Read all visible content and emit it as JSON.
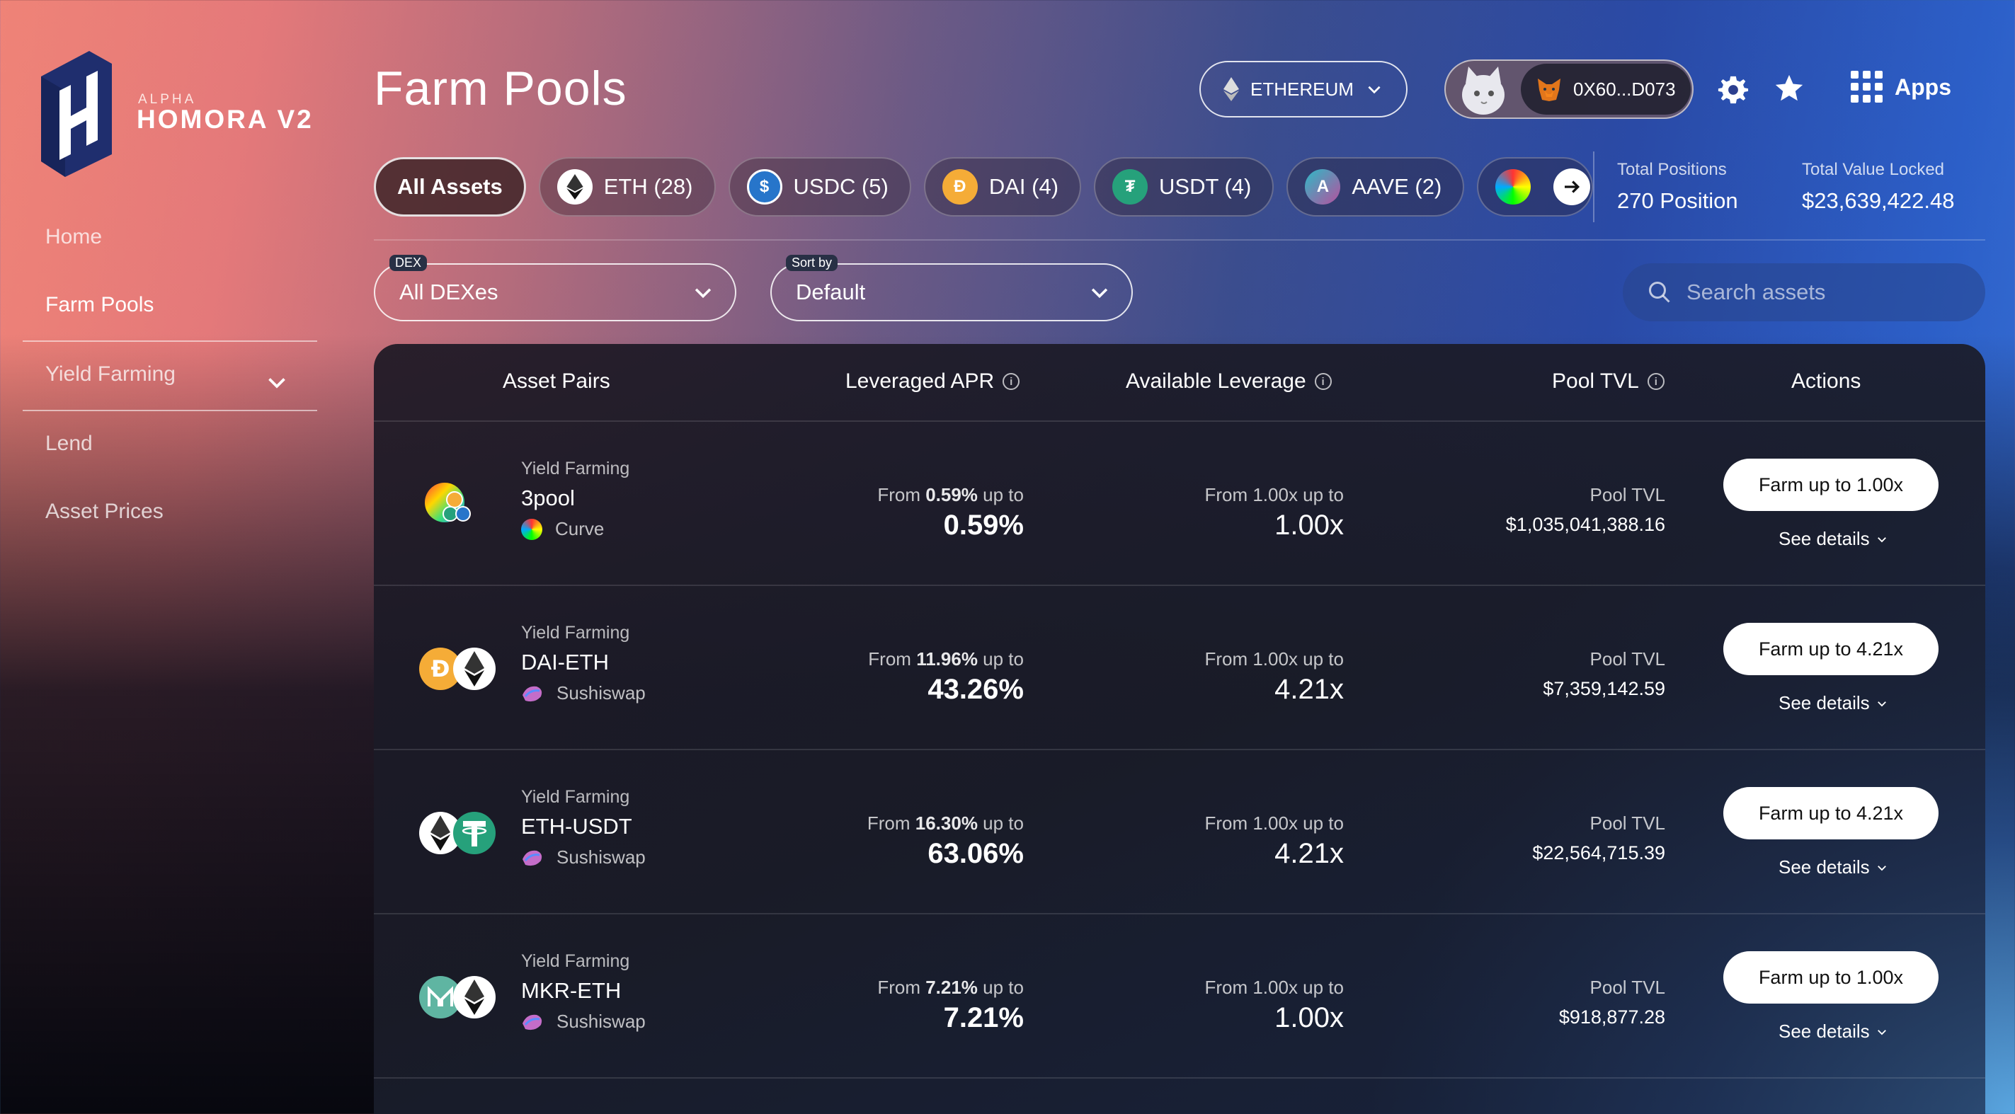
{
  "brand": {
    "small": "ALPHA",
    "big": "HOMORA V2"
  },
  "nav": {
    "home": "Home",
    "farm_pools": "Farm Pools",
    "yield_farming": "Yield Farming",
    "lend": "Lend",
    "asset_prices": "Asset Prices"
  },
  "header": {
    "title": "Farm Pools",
    "chain": "ETHEREUM",
    "wallet_address": "0X60...D073",
    "apps": "Apps"
  },
  "filters": [
    {
      "label": "All Assets",
      "icon": "none"
    },
    {
      "label": "ETH (28)",
      "icon": "eth-icon"
    },
    {
      "label": "USDC (5)",
      "icon": "usdc-icon"
    },
    {
      "label": "DAI (4)",
      "icon": "dai-icon"
    },
    {
      "label": "USDT (4)",
      "icon": "usdt-icon"
    },
    {
      "label": "AAVE (2)",
      "icon": "aave-icon"
    }
  ],
  "stats": {
    "positions_label": "Total Positions",
    "positions_value": "270 Position",
    "tvl_label": "Total Value Locked",
    "tvl_value": "$23,639,422.48"
  },
  "controls": {
    "dex_tag": "DEX",
    "dex_value": "All DEXes",
    "sort_tag": "Sort by",
    "sort_value": "Default",
    "search_placeholder": "Search assets"
  },
  "table": {
    "headers": {
      "pairs": "Asset Pairs",
      "apr": "Leveraged APR",
      "leverage": "Available Leverage",
      "tvl": "Pool TVL",
      "actions": "Actions"
    },
    "rows": [
      {
        "type": "Yield Farming",
        "pair": "3pool",
        "dex": "Curve",
        "apr_from_prefix": "From ",
        "apr_from_value": "0.59%",
        "apr_from_suffix": " up to",
        "apr_max": "0.59%",
        "lev_from": "From 1.00x up to",
        "lev_max": "1.00x",
        "tvl_label": "Pool TVL",
        "tvl_value": "$1,035,041,388.16",
        "farm_label": "Farm up to 1.00x",
        "details_label": "See details"
      },
      {
        "type": "Yield Farming",
        "pair": "DAI-ETH",
        "dex": "Sushiswap",
        "apr_from_prefix": "From ",
        "apr_from_value": "11.96%",
        "apr_from_suffix": " up to",
        "apr_max": "43.26%",
        "lev_from": "From 1.00x up to",
        "lev_max": "4.21x",
        "tvl_label": "Pool TVL",
        "tvl_value": "$7,359,142.59",
        "farm_label": "Farm up to 4.21x",
        "details_label": "See details"
      },
      {
        "type": "Yield Farming",
        "pair": "ETH-USDT",
        "dex": "Sushiswap",
        "apr_from_prefix": "From ",
        "apr_from_value": "16.30%",
        "apr_from_suffix": " up to",
        "apr_max": "63.06%",
        "lev_from": "From 1.00x up to",
        "lev_max": "4.21x",
        "tvl_label": "Pool TVL",
        "tvl_value": "$22,564,715.39",
        "farm_label": "Farm up to 4.21x",
        "details_label": "See details"
      },
      {
        "type": "Yield Farming",
        "pair": "MKR-ETH",
        "dex": "Sushiswap",
        "apr_from_prefix": "From ",
        "apr_from_value": "7.21%",
        "apr_from_suffix": " up to",
        "apr_max": "7.21%",
        "lev_from": "From 1.00x up to",
        "lev_max": "1.00x",
        "tvl_label": "Pool TVL",
        "tvl_value": "$918,877.28",
        "farm_label": "Farm up to 1.00x",
        "details_label": "See details"
      }
    ]
  },
  "colors": {
    "eth": "#ffffff",
    "usdc": "#2775ca",
    "dai": "#f5ac37",
    "usdt": "#26a17b",
    "aave": "#b6509e",
    "mkr": "#5fb5a2"
  }
}
